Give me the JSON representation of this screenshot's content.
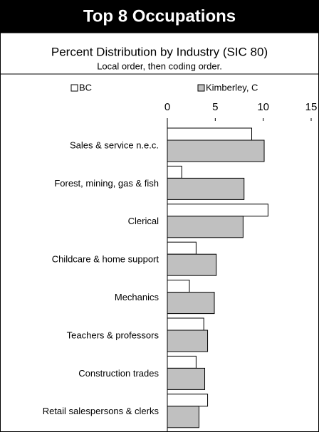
{
  "chart_data": {
    "type": "bar",
    "horizontal": true,
    "title": "Top 8 Occupations",
    "subtitle": "Percent Distribution by Industry (SIC 80)",
    "note": "Local order, then coding order.",
    "categories": [
      "Sales & service  n.e.c.",
      "Forest, mining, gas & fish",
      "Clerical",
      "Childcare & home support",
      "Mechanics",
      "Teachers & professors",
      "Construction trades",
      "Retail salespersons & clerks"
    ],
    "series": [
      {
        "name": "BC",
        "color": "#ffffff",
        "values": [
          8.8,
          1.5,
          10.5,
          3.0,
          2.3,
          3.8,
          3.0,
          4.2
        ]
      },
      {
        "name": "Kimberley, C",
        "color": "#c0c0c0",
        "values": [
          10.1,
          8.0,
          7.9,
          5.1,
          4.9,
          4.2,
          3.9,
          3.3
        ]
      }
    ],
    "xlim": [
      0,
      15
    ],
    "xticks": [
      0,
      5,
      10,
      15
    ],
    "grid": false
  }
}
